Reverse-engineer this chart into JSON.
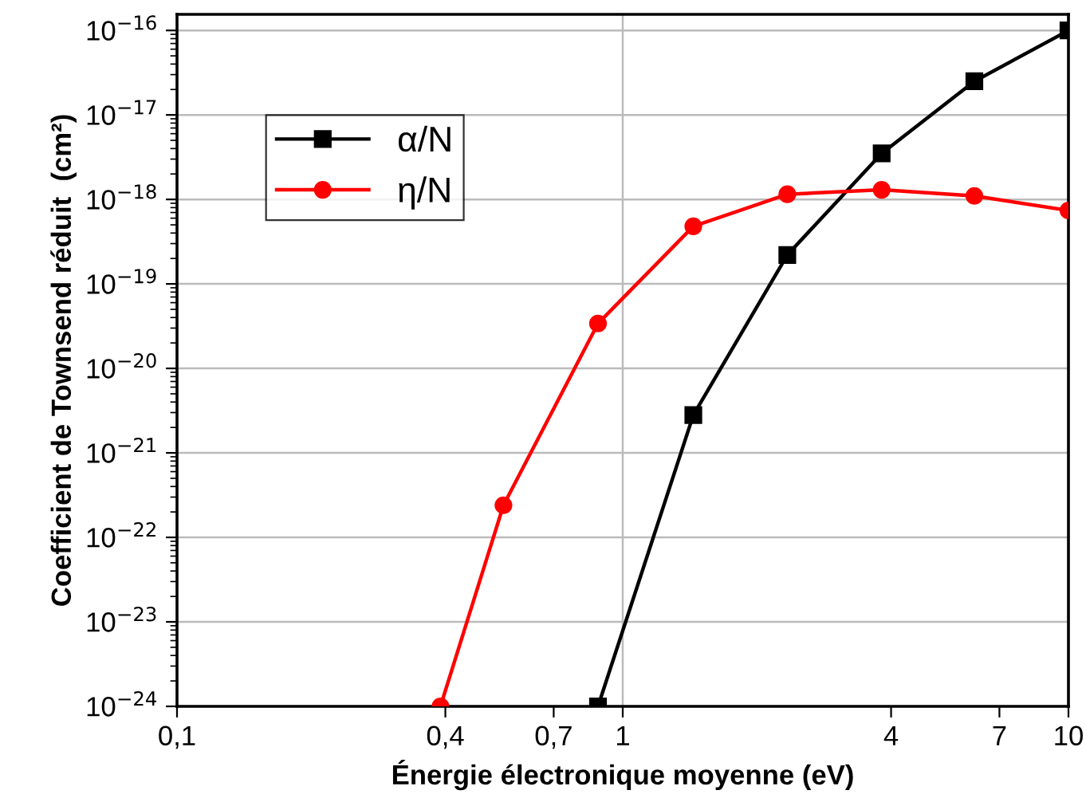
{
  "chart_data": {
    "type": "line",
    "xlabel": "Énergie électronique moyenne (eV)",
    "ylabel": "Coefficient de Townsend réduit  (cm²)",
    "log": "xy",
    "xlim": [
      0.1,
      10
    ],
    "ylim": [
      1e-24,
      1.55e-16
    ],
    "xticks": [
      {
        "value": 0.1,
        "label": "0,1"
      },
      {
        "value": 0.4,
        "label": "0,4"
      },
      {
        "value": 0.7,
        "label": "0,7"
      },
      1,
      4,
      7,
      10
    ],
    "yticks": [
      {
        "value": 1e-24,
        "label": "10$^{−24}$"
      },
      {
        "value": 1e-23,
        "label": "10$^{−23}$"
      },
      {
        "value": 1e-22,
        "label": "10$^{−22}$"
      },
      {
        "value": 1e-21,
        "label": "10$^{−21}$"
      },
      {
        "value": 1e-20,
        "label": "10$^{−20}$"
      },
      {
        "value": 1e-19,
        "label": "10$^{−19}$"
      },
      {
        "value": 1e-18,
        "label": "10$^{−18}$"
      },
      {
        "value": 1e-17,
        "label": "10$^{−17}$"
      },
      {
        "value": 1e-16,
        "label": "10$^{−16}$"
      }
    ],
    "grid": true,
    "legend": "top left",
    "series": [
      {
        "name": "α/N",
        "color": "#000000",
        "marker": "square",
        "x": [
          0.88,
          1.44,
          2.34,
          3.81,
          6.15,
          10
        ],
        "values": [
          1e-24,
          2.8e-21,
          2.2e-19,
          3.5e-18,
          2.5e-17,
          1e-16
        ]
      },
      {
        "name": "η/N",
        "color": "#ff0000",
        "marker": "circle",
        "x": [
          0.39,
          0.54,
          0.88,
          1.44,
          2.34,
          3.81,
          6.15,
          10
        ],
        "values": [
          1e-24,
          2.4e-22,
          3.4e-20,
          4.8e-19,
          1.15e-18,
          1.3e-18,
          1.1e-18,
          7.4e-19
        ]
      }
    ]
  }
}
